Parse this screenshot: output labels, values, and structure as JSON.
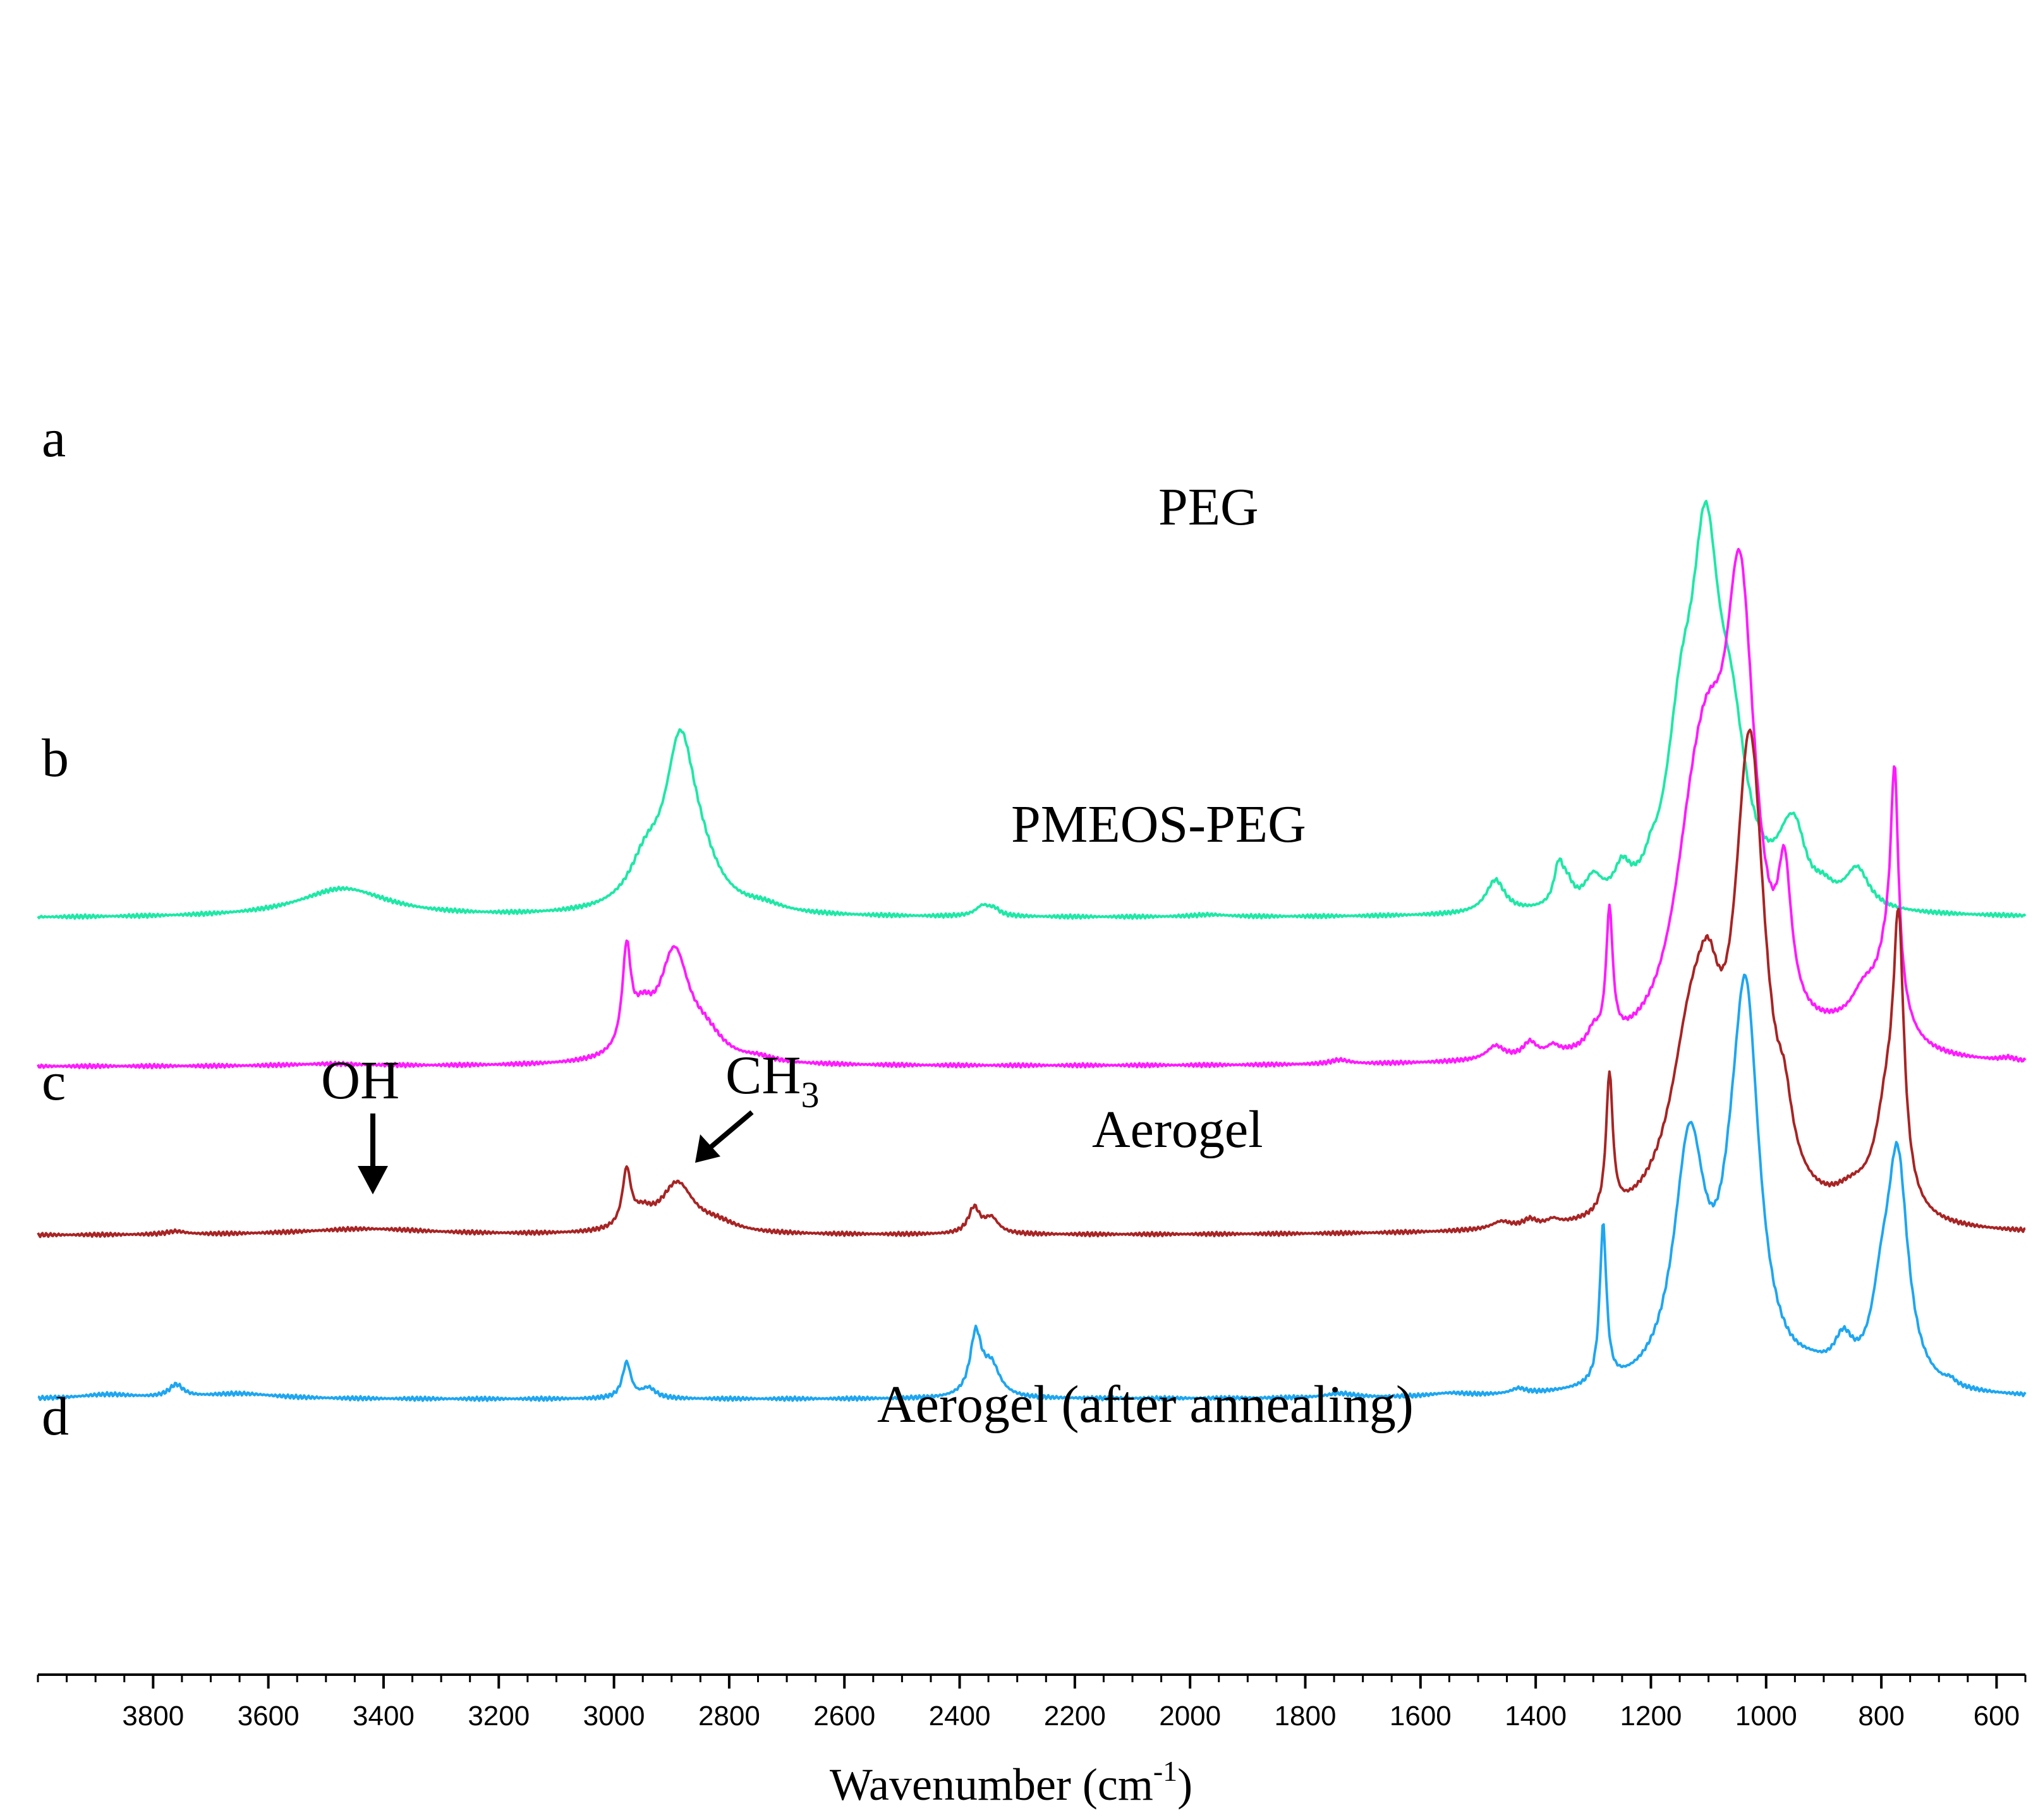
{
  "chart_data": {
    "type": "line",
    "title": "",
    "xlabel": "Wavenumber (cm",
    "xlabel_sup": "-1",
    "xlabel_close": ")",
    "ylabel": "",
    "xlim": [
      4000,
      550
    ],
    "x_ticks": [
      3800,
      3600,
      3400,
      3200,
      3000,
      2800,
      2600,
      2400,
      2200,
      2000,
      1800,
      1600,
      1400,
      1200,
      1000,
      800,
      600
    ],
    "x_tick_labels": [
      "3800",
      "3600",
      "3400",
      "3200",
      "3000",
      "2800",
      "2600",
      "2400",
      "2200",
      "2000",
      "1800",
      "1600",
      "1400",
      "1200",
      "1000",
      "800",
      "600"
    ],
    "legend": "none",
    "series": [
      {
        "letter": "a",
        "name": "PEG",
        "color": "#1ee8a6",
        "offset": 3.1,
        "peaks": [
          [
            3470,
            0.28,
            95
          ],
          [
            2945,
            0.4,
            35
          ],
          [
            2885,
            1.55,
            32
          ],
          [
            2850,
            0.3,
            40
          ],
          [
            2740,
            0.06,
            40
          ],
          [
            2360,
            0.1,
            15
          ],
          [
            2340,
            0.06,
            12
          ],
          [
            1965,
            0.02,
            40
          ],
          [
            1470,
            0.32,
            20
          ],
          [
            1360,
            0.38,
            10
          ],
          [
            1345,
            0.18,
            12
          ],
          [
            1300,
            0.25,
            18
          ],
          [
            1250,
            0.28,
            16
          ],
          [
            1200,
            0.12,
            10
          ],
          [
            1148,
            1.35,
            30
          ],
          [
            1105,
            3.15,
            30
          ],
          [
            1060,
            1.3,
            32
          ],
          [
            963,
            0.42,
            25
          ],
          [
            947,
            0.4,
            20
          ],
          [
            900,
            0.12,
            20
          ],
          [
            842,
            0.38,
            25
          ]
        ]
      },
      {
        "letter": "b",
        "name": "PMEOS-PEG",
        "color": "#ff1aff",
        "offset": 1.65,
        "peaks": [
          [
            3500,
            0.02,
            80
          ],
          [
            2978,
            0.95,
            9
          ],
          [
            2950,
            0.35,
            22
          ],
          [
            2895,
            1.05,
            32
          ],
          [
            2840,
            0.2,
            35
          ],
          [
            2750,
            0.04,
            30
          ],
          [
            1740,
            0.04,
            20
          ],
          [
            1470,
            0.13,
            18
          ],
          [
            1410,
            0.14,
            14
          ],
          [
            1370,
            0.08,
            12
          ],
          [
            1300,
            0.15,
            12
          ],
          [
            1272,
            1.27,
            7
          ],
          [
            1130,
            1.2,
            42
          ],
          [
            1100,
            1.8,
            40
          ],
          [
            1045,
            4.1,
            32
          ],
          [
            968,
            1.25,
            14
          ],
          [
            880,
            0.1,
            50
          ],
          [
            830,
            0.4,
            30
          ],
          [
            788,
            0.8,
            26
          ],
          [
            777,
            2.05,
            8
          ],
          [
            580,
            0.03,
            15
          ]
        ]
      },
      {
        "letter": "c",
        "name": "Aerogel",
        "color": "#a82424",
        "offset": 0.0,
        "peaks": [
          [
            3760,
            0.03,
            20
          ],
          [
            3430,
            0.06,
            140
          ],
          [
            2978,
            0.55,
            9
          ],
          [
            2950,
            0.14,
            20
          ],
          [
            2890,
            0.48,
            35
          ],
          [
            2820,
            0.08,
            40
          ],
          [
            2375,
            0.25,
            12
          ],
          [
            2345,
            0.15,
            15
          ],
          [
            1460,
            0.07,
            20
          ],
          [
            1410,
            0.07,
            14
          ],
          [
            1370,
            0.05,
            12
          ],
          [
            1272,
            1.35,
            7
          ],
          [
            1130,
            1.65,
            45
          ],
          [
            1100,
            1.0,
            25
          ],
          [
            1028,
            4.5,
            32
          ],
          [
            968,
            0.5,
            16
          ],
          [
            850,
            0.2,
            40
          ],
          [
            790,
            1.0,
            25
          ],
          [
            770,
            2.45,
            11
          ]
        ]
      },
      {
        "letter": "d",
        "name": "Aerogel (after annealing)",
        "color": "#1ea6f0",
        "offset": -1.6,
        "peaks": [
          [
            3760,
            0.12,
            15
          ],
          [
            3650,
            0.05,
            80
          ],
          [
            3880,
            0.04,
            60
          ],
          [
            2978,
            0.35,
            9
          ],
          [
            2940,
            0.1,
            15
          ],
          [
            2372,
            0.6,
            12
          ],
          [
            2345,
            0.3,
            18
          ],
          [
            1740,
            0.04,
            30
          ],
          [
            1550,
            0.03,
            40
          ],
          [
            1430,
            0.05,
            15
          ],
          [
            1283,
            1.55,
            7
          ],
          [
            1133,
            2.33,
            33
          ],
          [
            1060,
            0.6,
            30
          ],
          [
            1035,
            3.5,
            28
          ],
          [
            920,
            0.1,
            40
          ],
          [
            866,
            0.35,
            20
          ],
          [
            800,
            0.6,
            20
          ],
          [
            772,
            2.2,
            22
          ],
          [
            680,
            0.05,
            10
          ]
        ]
      }
    ],
    "annotations": [
      {
        "text": "OH",
        "target_x": 3430,
        "target_series": "c"
      },
      {
        "text": "CH",
        "sub": "3",
        "target_x": 2900,
        "target_series": "c"
      }
    ]
  }
}
